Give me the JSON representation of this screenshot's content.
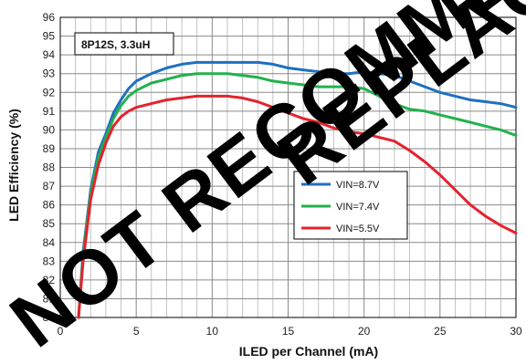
{
  "chart_data": {
    "type": "line",
    "title": "",
    "xlabel": "ILED per Channel (mA)",
    "ylabel": "LED Efficiency (%)",
    "xlim": [
      0,
      30
    ],
    "ylim": [
      80,
      96
    ],
    "xticks": [
      "0",
      "5",
      "10",
      "15",
      "20",
      "25",
      "30"
    ],
    "yticks": [
      "80",
      "81",
      "82",
      "83",
      "84",
      "85",
      "86",
      "87",
      "88",
      "89",
      "90",
      "91",
      "92",
      "93",
      "94",
      "95",
      "96"
    ],
    "grid": true,
    "legend_position": "center-right",
    "annotation": "8P12S, 3.3uH",
    "watermark": [
      "NOT RECOMMENDED",
      "REPLACE"
    ],
    "series": [
      {
        "name": "VIN=8.7V",
        "color": "#1f6fc1",
        "x": [
          1.2,
          1.5,
          2.0,
          2.5,
          3.0,
          3.5,
          4.0,
          4.5,
          5.0,
          6.0,
          7.0,
          8.0,
          9.0,
          10.0,
          11.0,
          12.0,
          13.0,
          14.0,
          15.0,
          16.0,
          17.0,
          18.0,
          19.0,
          20.0,
          21.0,
          22.0,
          23.0,
          24.0,
          25.0,
          26.0,
          27.0,
          28.0,
          29.0,
          30.0
        ],
        "y": [
          80.0,
          83.5,
          86.8,
          88.8,
          89.8,
          90.9,
          91.6,
          92.2,
          92.6,
          93.0,
          93.3,
          93.5,
          93.6,
          93.6,
          93.6,
          93.6,
          93.6,
          93.5,
          93.3,
          93.2,
          93.1,
          93.0,
          93.0,
          93.1,
          93.0,
          92.9,
          92.6,
          92.3,
          92.0,
          91.8,
          91.6,
          91.5,
          91.4,
          91.2
        ]
      },
      {
        "name": "VIN=7.4V",
        "color": "#22b14c",
        "x": [
          1.2,
          1.5,
          2.0,
          2.5,
          3.0,
          3.5,
          4.0,
          4.5,
          5.0,
          6.0,
          7.0,
          8.0,
          9.0,
          10.0,
          11.0,
          12.0,
          13.0,
          14.0,
          15.0,
          16.0,
          17.0,
          18.0,
          19.0,
          20.0,
          21.0,
          22.0,
          23.0,
          24.0,
          25.0,
          26.0,
          27.0,
          28.0,
          29.0,
          30.0
        ],
        "y": [
          80.0,
          83.3,
          86.6,
          88.5,
          89.6,
          90.6,
          91.3,
          91.8,
          92.1,
          92.5,
          92.7,
          92.9,
          93.0,
          93.0,
          93.0,
          92.9,
          92.8,
          92.6,
          92.5,
          92.4,
          92.3,
          92.3,
          92.3,
          92.2,
          91.8,
          91.4,
          91.1,
          91.0,
          90.8,
          90.6,
          90.4,
          90.2,
          90.0,
          89.7
        ]
      },
      {
        "name": "VIN=5.5V",
        "color": "#e4222e",
        "x": [
          1.2,
          1.5,
          2.0,
          2.5,
          3.0,
          3.5,
          4.0,
          4.5,
          5.0,
          6.0,
          7.0,
          8.0,
          9.0,
          10.0,
          11.0,
          12.0,
          13.0,
          14.0,
          15.0,
          16.0,
          17.0,
          18.0,
          19.0,
          20.0,
          21.0,
          22.0,
          23.0,
          24.0,
          25.0,
          26.0,
          27.0,
          28.0,
          29.0,
          30.0
        ],
        "y": [
          80.0,
          83.0,
          86.3,
          88.1,
          89.3,
          90.2,
          90.7,
          91.0,
          91.2,
          91.4,
          91.6,
          91.7,
          91.8,
          91.8,
          91.8,
          91.7,
          91.5,
          91.2,
          90.9,
          90.6,
          90.4,
          90.1,
          89.9,
          89.8,
          89.6,
          89.4,
          88.9,
          88.3,
          87.6,
          86.8,
          86.0,
          85.4,
          84.9,
          84.5
        ]
      }
    ]
  }
}
